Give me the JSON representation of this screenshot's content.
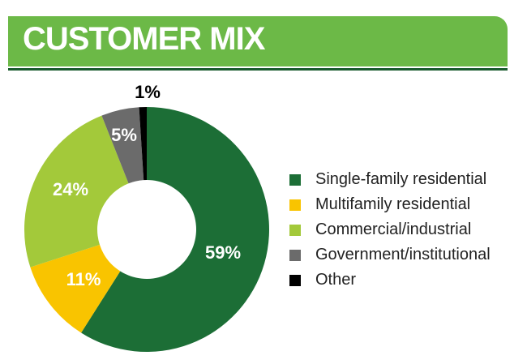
{
  "header": {
    "title": "CUSTOMER MIX"
  },
  "colors": {
    "header_bg": "#6cb947",
    "header_rule": "#1a5c2e"
  },
  "chart_data": {
    "type": "pie",
    "donut": true,
    "title": "",
    "legend_position": "right",
    "categories": [
      "Single-family residential",
      "Multifamily residential",
      "Commercial/industrial",
      "Government/institutional",
      "Other"
    ],
    "values": [
      59,
      11,
      24,
      5,
      1
    ],
    "labels": [
      "59%",
      "11%",
      "24%",
      "5%",
      "1%"
    ],
    "colors": [
      "#1c6e36",
      "#f9c400",
      "#a3c93a",
      "#6b6b6b",
      "#000000"
    ],
    "label_colors": [
      "#ffffff",
      "#ffffff",
      "#ffffff",
      "#ffffff",
      "#000000"
    ]
  }
}
